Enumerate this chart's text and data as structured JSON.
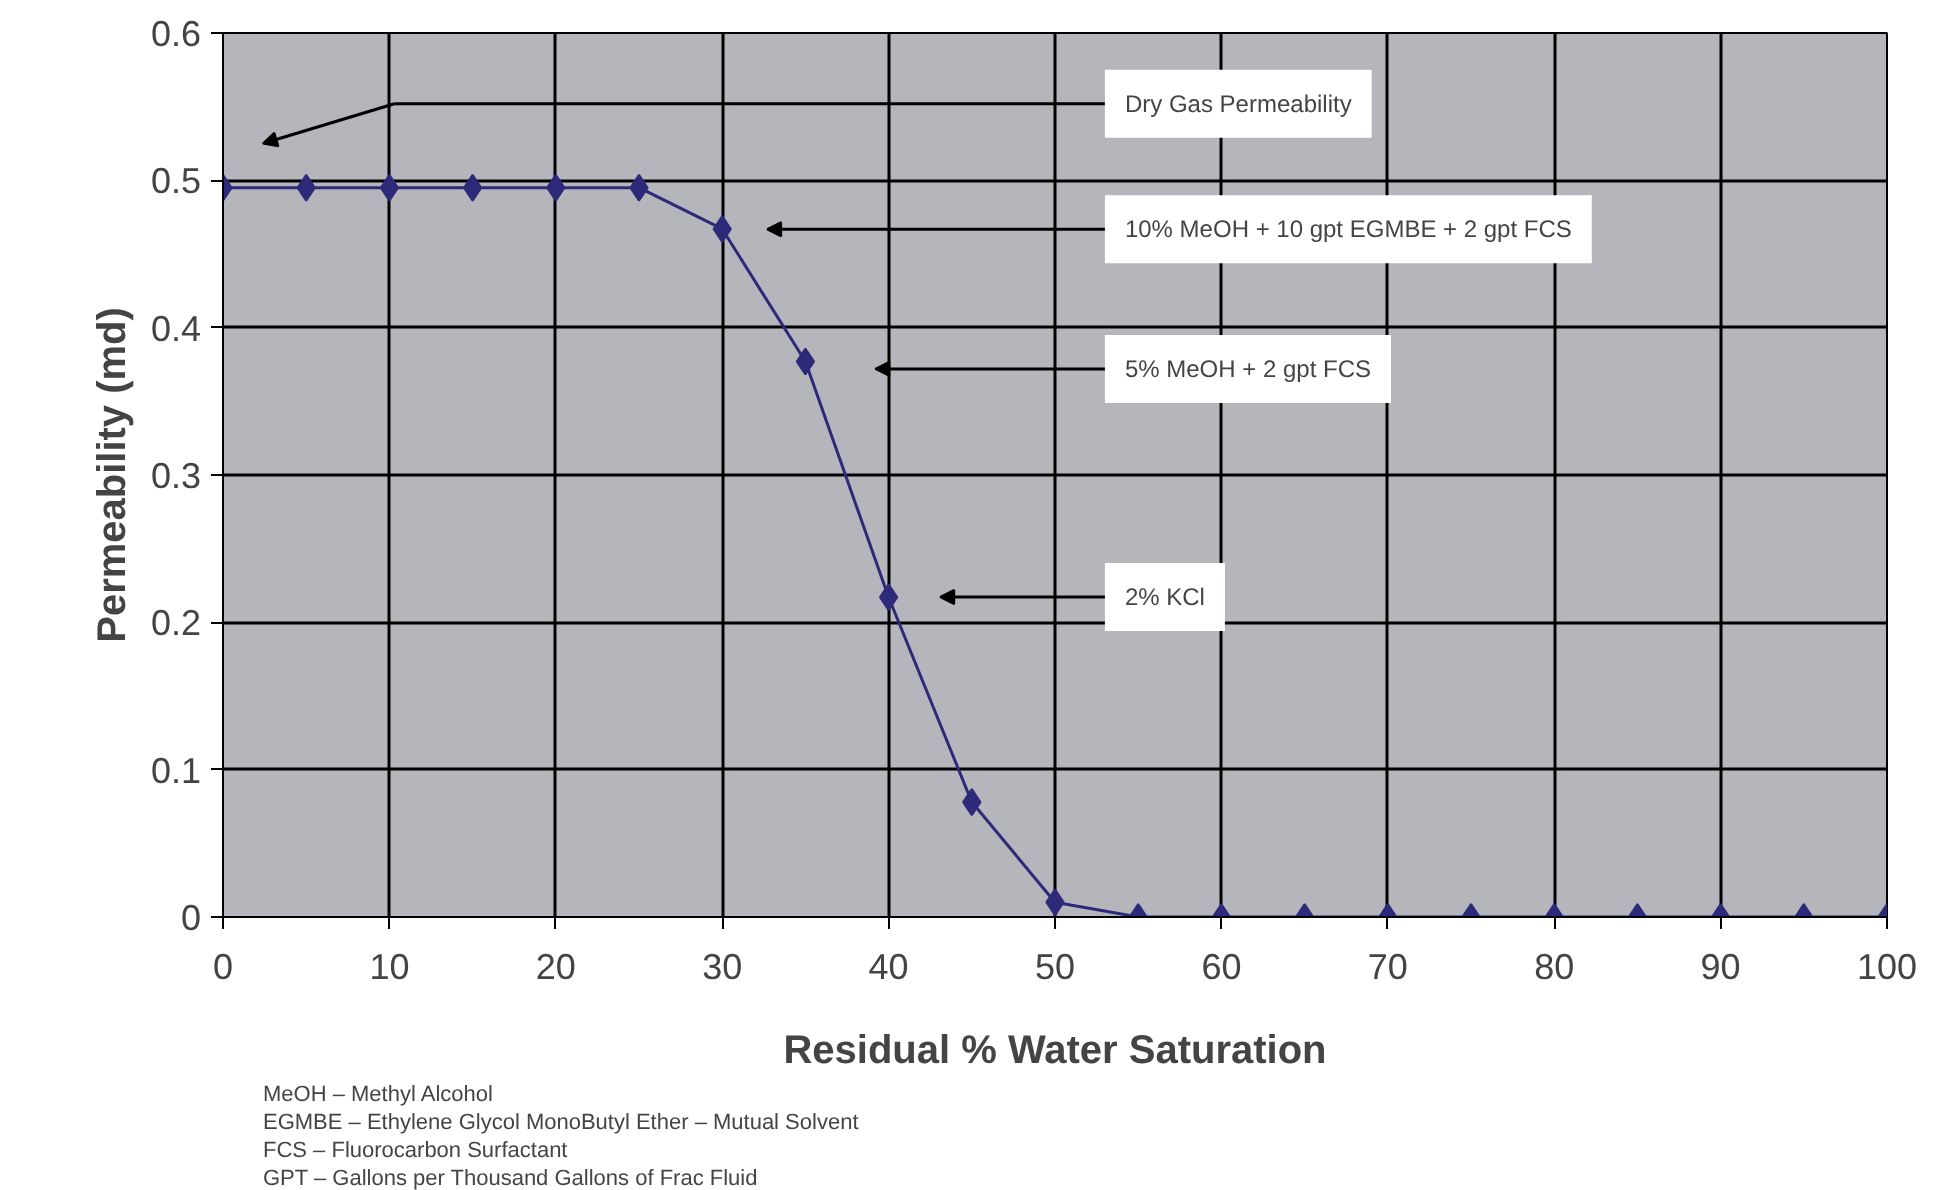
{
  "chart_data": {
    "type": "line",
    "xlabel": "Residual % Water Saturation",
    "ylabel": "Permeability (md)",
    "x": [
      0,
      5,
      10,
      15,
      20,
      25,
      30,
      35,
      40,
      45,
      50,
      55,
      60,
      65,
      70,
      75,
      80,
      85,
      90,
      95,
      100
    ],
    "series": [
      {
        "color": "#2e2a7a",
        "values": [
          0.495,
          0.495,
          0.495,
          0.495,
          0.495,
          0.495,
          0.467,
          0.377,
          0.217,
          0.078,
          0.01,
          0,
          0,
          0,
          0,
          0,
          0,
          0,
          0,
          0,
          0
        ]
      }
    ],
    "xlim": [
      0,
      100
    ],
    "xticks": [
      0,
      10,
      20,
      30,
      40,
      50,
      60,
      70,
      80,
      90,
      100
    ],
    "ylim": [
      0,
      0.6
    ],
    "yticks": [
      0,
      0.1,
      0.2,
      0.3,
      0.4,
      0.5,
      0.6
    ],
    "grid": true,
    "marker": "diamond",
    "line_style": "solid",
    "annotations": [
      "Dry Gas Permeability",
      "10% MeOH + 10 gpt EGMBE + 2 gpt FCS",
      "5% MeOH + 2 gpt FCS",
      "2% KCl",
      "MeOH – Methyl Alcohol",
      "EGMBE – Ethylene Glycol MonoButyl Ether – Mutual Solvent",
      "FCS – Fluorocarbon Surfactant",
      "GPT – Gallons per Thousand Gallons of Frac Fluid"
    ]
  }
}
